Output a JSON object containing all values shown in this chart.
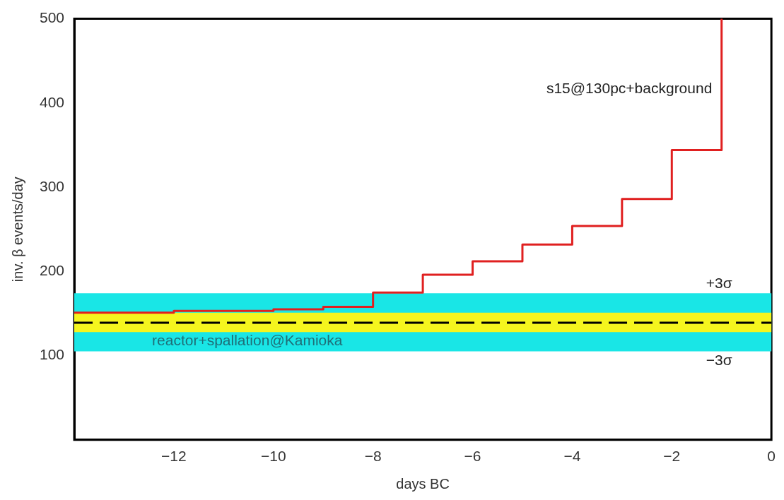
{
  "chart_data": {
    "type": "step",
    "xlabel": "days BC",
    "ylabel": "inv. β events/day",
    "xlim": [
      -14,
      0
    ],
    "xticks": [
      -12,
      -10,
      -8,
      -6,
      -4,
      -2,
      0
    ],
    "ylim": [
      0,
      500
    ],
    "yticks": [
      100,
      200,
      300,
      400,
      500
    ],
    "grid": false,
    "legend": false,
    "marker": "none",
    "line_style": "solid",
    "series": [
      {
        "x": [
          -14,
          -12,
          -10,
          -9,
          -8,
          -7,
          -6,
          -5,
          -4,
          -3,
          -2,
          -1
        ],
        "values": [
          151,
          153,
          155,
          158,
          175,
          196,
          212,
          232,
          254,
          286,
          344,
          500
        ],
        "color": "#e02020"
      }
    ],
    "bands": [
      {
        "axis": "y",
        "from": 105,
        "to": 174,
        "color": "#19e6e6"
      },
      {
        "axis": "y",
        "from": 128,
        "to": 151,
        "color": "#f5f51e"
      }
    ],
    "ref_lines": [
      {
        "axis": "y",
        "value": 139,
        "label": "reactor+spallation@Kamioka",
        "color": "#000000",
        "line_style": "dashed"
      }
    ],
    "annotations": [
      "s15@130pc+background",
      {
        "text": "+3σ",
        "x": -1.05,
        "y": 174
      },
      {
        "text": "−3σ",
        "x": -1.05,
        "y": 105
      }
    ]
  }
}
